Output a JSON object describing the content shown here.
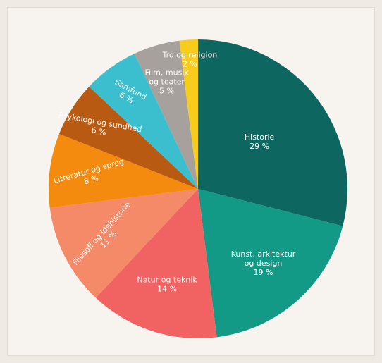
{
  "chart_data": {
    "type": "pie",
    "title": "",
    "start": "12 o'clock",
    "direction": "clockwise",
    "slices": [
      {
        "label": "Historie",
        "value": 29,
        "display": "29 %",
        "color": "#0e6660"
      },
      {
        "label": "Kunst, arkitektur og design",
        "value": 19,
        "display": "19 %",
        "color": "#129a86"
      },
      {
        "label": "Natur og teknik",
        "value": 14,
        "display": "14 %",
        "color": "#f16363"
      },
      {
        "label": "Filosofi og idéhistorie",
        "value": 11,
        "display": "11 %",
        "color": "#f58a68"
      },
      {
        "label": "Litteratur og sprog",
        "value": 8,
        "display": "8 %",
        "color": "#f58b0e"
      },
      {
        "label": "Psykologi og sundhed",
        "value": 6,
        "display": "6 %",
        "color": "#b85a12"
      },
      {
        "label": "Samfund",
        "value": 6,
        "display": "6 %",
        "color": "#3bbfcf"
      },
      {
        "label": "Film, musik og teater",
        "value": 5,
        "display": "5 %",
        "color": "#a6a19c"
      },
      {
        "label": "Tro og religion",
        "value": 2,
        "display": "2 %",
        "color": "#f7cc1a"
      }
    ]
  }
}
